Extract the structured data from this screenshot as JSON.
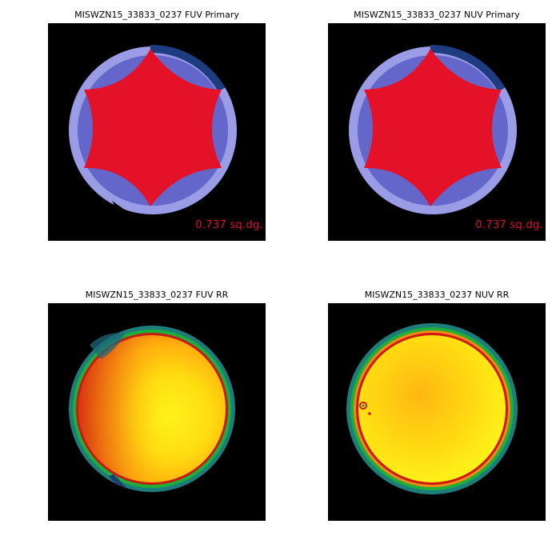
{
  "panels": {
    "fuv_primary": {
      "title": "MISWZN15_33833_0237 FUV Primary",
      "area_label": "0.737 sq.dg."
    },
    "nuv_primary": {
      "title": "MISWZN15_33833_0237 NUV Primary",
      "area_label": "0.737 sq.dg."
    },
    "fuv_rr": {
      "title": "MISWZN15_33833_0237 FUV RR"
    },
    "nuv_rr": {
      "title": "MISWZN15_33833_0237 NUV RR"
    }
  },
  "colors": {
    "background": "#000000",
    "coverage_outer": "#9a9ce6",
    "coverage_inner": "#6466c9",
    "coverage_edge": "#1e3d80",
    "primary_region": "#e31228",
    "area_label": "#e0121f"
  }
}
